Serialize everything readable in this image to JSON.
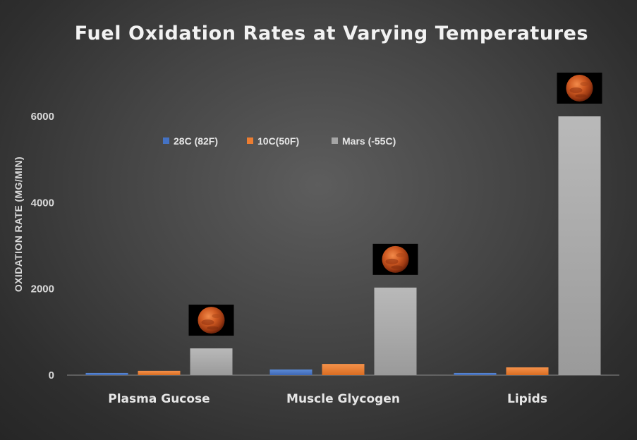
{
  "chart_data": {
    "type": "bar",
    "title": "Fuel Oxidation Rates at Varying Temperatures",
    "ylabel": "OXIDATION RATE (MG/MIN)",
    "xlabel": "",
    "categories": [
      "Plasma Gucose",
      "Muscle Glycogen",
      "Lipids"
    ],
    "series": [
      {
        "name": "28C (82F)",
        "values": [
          50,
          130,
          50
        ],
        "color": "#4472c4"
      },
      {
        "name": "10C(50F)",
        "values": [
          100,
          260,
          180
        ],
        "color": "#ed7d31"
      },
      {
        "name": "Mars (-55C)",
        "values": [
          620,
          2030,
          6000
        ],
        "color": "#a5a5a5"
      }
    ],
    "yticks": [
      0,
      2000,
      4000,
      6000
    ],
    "ylim": [
      0,
      6000
    ],
    "grid": false,
    "legend_position": "top-center",
    "annotations": [
      {
        "type": "mars-planet-image",
        "category": "Plasma Gucose",
        "series": "Mars (-55C)"
      },
      {
        "type": "mars-planet-image",
        "category": "Muscle Glycogen",
        "series": "Mars (-55C)"
      },
      {
        "type": "mars-planet-image",
        "category": "Lipids",
        "series": "Mars (-55C)"
      }
    ]
  }
}
